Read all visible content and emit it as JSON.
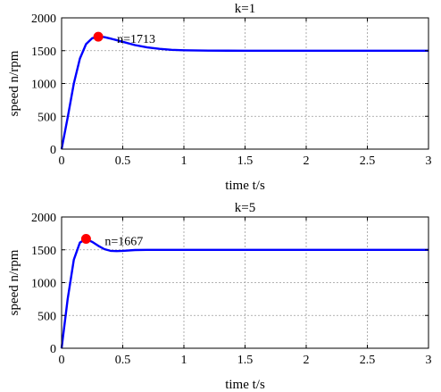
{
  "chart_data": [
    {
      "type": "line",
      "title": "k=1",
      "xlabel": "time t/s",
      "ylabel": "speed n/rpm",
      "xlim": [
        0,
        3
      ],
      "ylim": [
        0,
        2000
      ],
      "xticks": [
        "0",
        "0.5",
        "1",
        "1.5",
        "2",
        "2.5",
        "3"
      ],
      "yticks": [
        "0",
        "500",
        "1000",
        "1500",
        "2000"
      ],
      "grid": true,
      "series": [
        {
          "color": "#0000ff",
          "x": [
            0,
            0.05,
            0.1,
            0.15,
            0.2,
            0.25,
            0.3,
            0.35,
            0.4,
            0.5,
            0.6,
            0.7,
            0.8,
            0.9,
            1.0,
            1.2,
            1.5,
            2.0,
            2.5,
            3.0
          ],
          "y": [
            0,
            480,
            1000,
            1380,
            1600,
            1690,
            1713,
            1706,
            1685,
            1635,
            1585,
            1550,
            1528,
            1513,
            1506,
            1501,
            1500,
            1500,
            1500,
            1500
          ]
        }
      ],
      "marker": {
        "x": 0.3,
        "y": 1713,
        "color": "#ff0000",
        "label": "n=1713"
      }
    },
    {
      "type": "line",
      "title": "k=5",
      "xlabel": "time t/s",
      "ylabel": "speed n/rpm",
      "xlim": [
        0,
        3
      ],
      "ylim": [
        0,
        2000
      ],
      "xticks": [
        "0",
        "0.5",
        "1",
        "1.5",
        "2",
        "2.5",
        "3"
      ],
      "yticks": [
        "0",
        "500",
        "1000",
        "1500",
        "2000"
      ],
      "grid": true,
      "series": [
        {
          "color": "#0000ff",
          "x": [
            0,
            0.05,
            0.1,
            0.15,
            0.2,
            0.25,
            0.3,
            0.35,
            0.4,
            0.45,
            0.5,
            0.6,
            0.7,
            0.8,
            1.0,
            1.5,
            2.0,
            2.5,
            3.0
          ],
          "y": [
            0,
            750,
            1350,
            1610,
            1667,
            1620,
            1560,
            1510,
            1485,
            1480,
            1485,
            1496,
            1500,
            1500,
            1500,
            1500,
            1500,
            1500,
            1500
          ]
        }
      ],
      "marker": {
        "x": 0.2,
        "y": 1667,
        "color": "#ff0000",
        "label": "n=1667"
      }
    }
  ]
}
